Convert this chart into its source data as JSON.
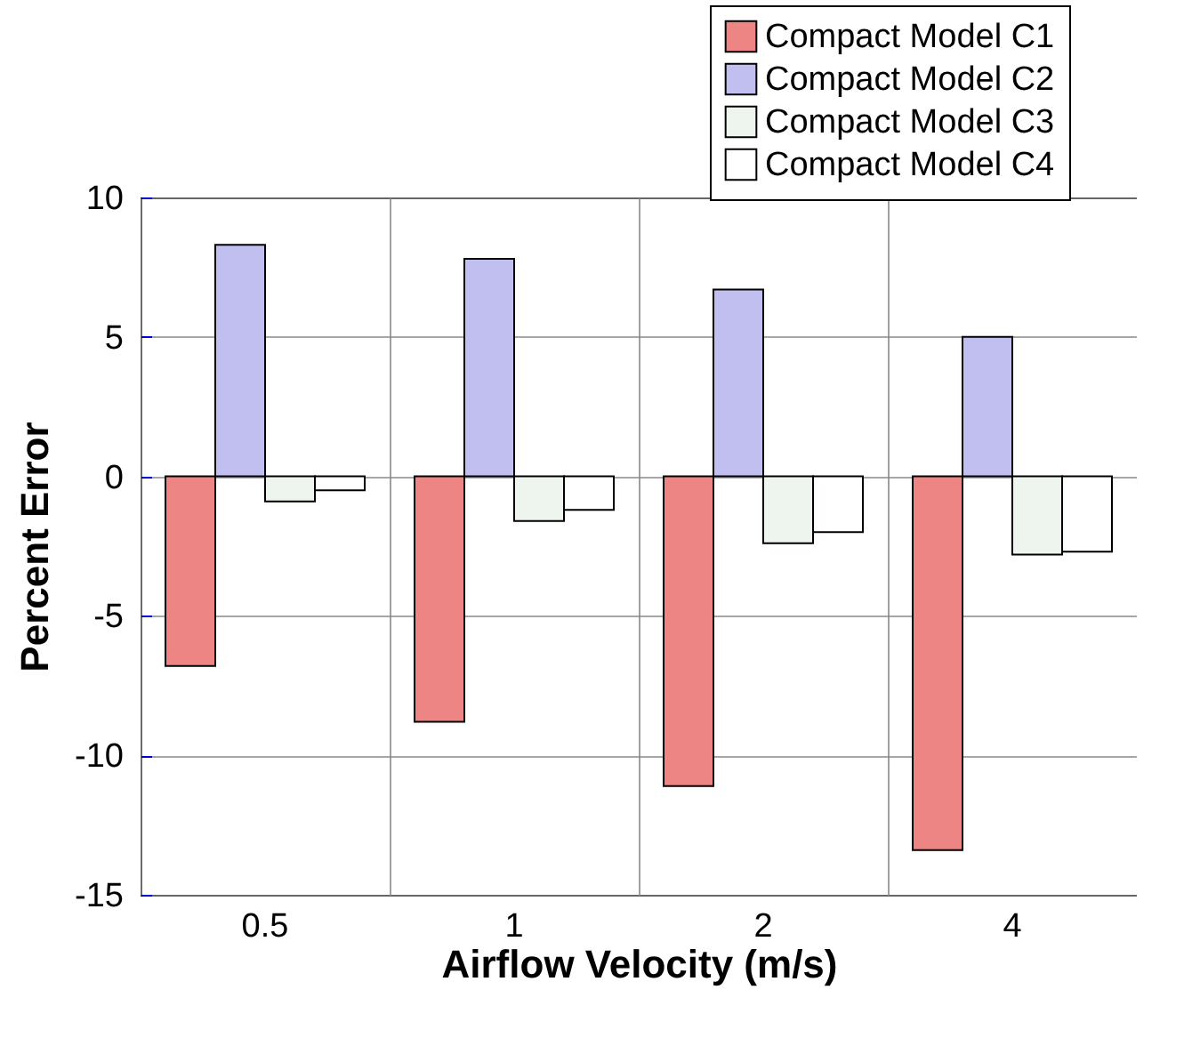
{
  "chart_data": {
    "type": "bar",
    "xlabel": "Airflow Velocity (m/s)",
    "ylabel": "Percent Error",
    "categories": [
      "0.5",
      "1",
      "2",
      "4"
    ],
    "series": [
      {
        "name": "Compact Model C1",
        "color": "#ee8585",
        "values": [
          -6.8,
          -8.8,
          -11.1,
          -13.4
        ]
      },
      {
        "name": "Compact Model C2",
        "color": "#c0bff0",
        "values": [
          8.3,
          7.8,
          6.7,
          5.0
        ]
      },
      {
        "name": "Compact Model C3",
        "color": "#eef4ee",
        "values": [
          -0.9,
          -1.6,
          -2.4,
          -2.8
        ]
      },
      {
        "name": "Compact Model C4",
        "color": "#ffffff",
        "values": [
          -0.5,
          -1.2,
          -2.0,
          -2.7
        ]
      }
    ],
    "ylim": [
      -15,
      10
    ],
    "yticks": [
      -15,
      -10,
      -5,
      0,
      5,
      10
    ],
    "grid": true,
    "legend": "top right"
  }
}
